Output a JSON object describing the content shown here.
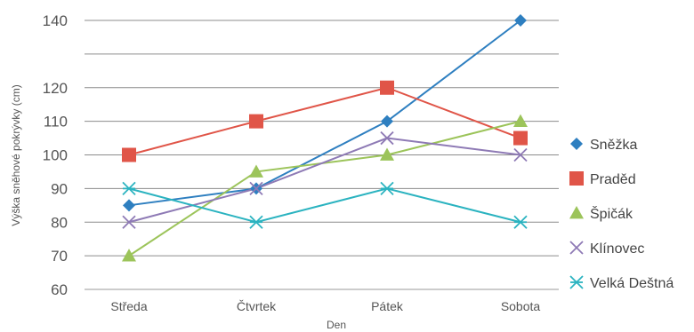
{
  "chart_data": {
    "type": "line",
    "xlabel": "Den",
    "ylabel": "Výška sněhové pokrývky (cm)",
    "categories": [
      "Středa",
      "Čtvrtek",
      "Pátek",
      "Sobota"
    ],
    "ylim": [
      60,
      140
    ],
    "yticks": [
      60,
      70,
      80,
      90,
      100,
      110,
      120,
      140
    ],
    "grid": true,
    "legend_position": "right",
    "series": [
      {
        "name": "Sněžka",
        "values": [
          85,
          90,
          110,
          140
        ],
        "color": "#2e7fc0",
        "marker": "diamond"
      },
      {
        "name": "Praděd",
        "values": [
          100,
          110,
          120,
          105
        ],
        "color": "#e05548",
        "marker": "square"
      },
      {
        "name": "Špičák",
        "values": [
          70,
          95,
          100,
          110
        ],
        "color": "#9cc45a",
        "marker": "triangle"
      },
      {
        "name": "Klínovec",
        "values": [
          80,
          90,
          105,
          100
        ],
        "color": "#8e7ab5",
        "marker": "x"
      },
      {
        "name": "Velká Deštná",
        "values": [
          90,
          80,
          90,
          80
        ],
        "color": "#2bb3c0",
        "marker": "asterisk"
      }
    ]
  }
}
